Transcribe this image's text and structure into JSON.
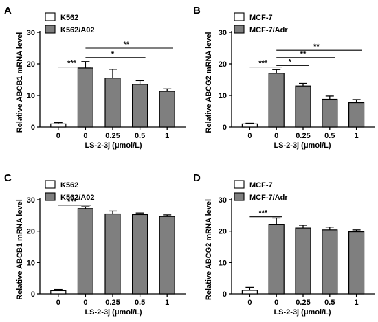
{
  "chart_data": [
    {
      "panel": "A",
      "type": "bar",
      "categories": [
        "0",
        "0",
        "0.25",
        "0.5",
        "1"
      ],
      "xlabel": "LS-2-3j (μmol/L)",
      "ylabel": "Relative ABCB1 mRNA level",
      "ylim": [
        0,
        30
      ],
      "yticks": [
        0,
        10,
        20,
        30
      ],
      "legend": [
        {
          "label": "K562",
          "color": "#ffffff"
        },
        {
          "label": "K562/A02",
          "color": "#7f7f7f"
        }
      ],
      "values": [
        1.0,
        18.7,
        15.5,
        13.5,
        11.3
      ],
      "errors": [
        0.4,
        2.0,
        2.8,
        1.2,
        0.8
      ],
      "bar_colors": [
        "#ffffff",
        "#7f7f7f",
        "#7f7f7f",
        "#7f7f7f",
        "#7f7f7f"
      ],
      "significance": [
        {
          "from": 0,
          "to": 1,
          "label": "***",
          "y": 19.0
        },
        {
          "from": 1,
          "to": 3,
          "label": "*",
          "y": 22.0
        },
        {
          "from": 1,
          "to": 4,
          "label": "**",
          "y": 25.0
        }
      ]
    },
    {
      "panel": "B",
      "type": "bar",
      "categories": [
        "0",
        "0",
        "0.25",
        "0.5",
        "1"
      ],
      "xlabel": "LS-2-3j (μmol/L)",
      "ylabel": "Relative ABCG2 mRNA level",
      "ylim": [
        0,
        30
      ],
      "yticks": [
        0,
        10,
        20,
        30
      ],
      "legend": [
        {
          "label": "MCF-7",
          "color": "#ffffff"
        },
        {
          "label": "MCF-7/Adr",
          "color": "#7f7f7f"
        }
      ],
      "values": [
        1.0,
        17.0,
        13.0,
        8.8,
        7.7
      ],
      "errors": [
        0.2,
        1.2,
        0.8,
        1.0,
        1.0
      ],
      "bar_colors": [
        "#ffffff",
        "#7f7f7f",
        "#7f7f7f",
        "#7f7f7f",
        "#7f7f7f"
      ],
      "significance": [
        {
          "from": 0,
          "to": 1,
          "label": "***",
          "y": 19.0
        },
        {
          "from": 1,
          "to": 2,
          "label": "*",
          "y": 19.5
        },
        {
          "from": 1,
          "to": 3,
          "label": "**",
          "y": 22.0
        },
        {
          "from": 1,
          "to": 4,
          "label": "**",
          "y": 24.3
        }
      ]
    },
    {
      "panel": "C",
      "type": "bar",
      "categories": [
        "0",
        "0",
        "0.25",
        "0.5",
        "1"
      ],
      "xlabel": "LS-2-3j (μmol/L)",
      "ylabel": "Relative ABCB1 mRNA level",
      "ylim": [
        0,
        30
      ],
      "yticks": [
        0,
        10,
        20,
        30
      ],
      "legend": [
        {
          "label": "K562",
          "color": "#ffffff"
        },
        {
          "label": "K562/A02",
          "color": "#7f7f7f"
        }
      ],
      "values": [
        1.0,
        27.2,
        25.5,
        25.3,
        24.7
      ],
      "errors": [
        0.4,
        0.6,
        0.9,
        0.5,
        0.5
      ],
      "bar_colors": [
        "#ffffff",
        "#7f7f7f",
        "#7f7f7f",
        "#7f7f7f",
        "#7f7f7f"
      ],
      "significance": [
        {
          "from": 0,
          "to": 1,
          "label": "***",
          "y": 28.3
        }
      ]
    },
    {
      "panel": "D",
      "type": "bar",
      "categories": [
        "0",
        "0",
        "0.25",
        "0.5",
        "1"
      ],
      "xlabel": "LS-2-3j (μmol/L)",
      "ylabel": "Relative ABCG2 mRNA level",
      "ylim": [
        0,
        30
      ],
      "yticks": [
        0,
        10,
        20,
        30
      ],
      "legend": [
        {
          "label": "MCF-7",
          "color": "#ffffff"
        },
        {
          "label": "MCF-7/Adr",
          "color": "#7f7f7f"
        }
      ],
      "values": [
        1.1,
        22.2,
        21.0,
        20.4,
        19.8
      ],
      "errors": [
        1.0,
        2.0,
        0.9,
        0.9,
        0.6
      ],
      "bar_colors": [
        "#ffffff",
        "#7f7f7f",
        "#7f7f7f",
        "#7f7f7f",
        "#7f7f7f"
      ],
      "significance": [
        {
          "from": 0,
          "to": 1,
          "label": "***",
          "y": 24.6
        }
      ]
    }
  ]
}
